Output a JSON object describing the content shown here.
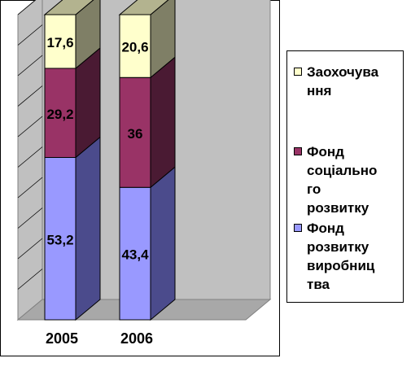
{
  "chart_data": {
    "type": "bar",
    "stacked": true,
    "three_d": true,
    "categories": [
      "2005",
      "2006"
    ],
    "series": [
      {
        "name_lines": [
          "Фонд",
          "розвитку",
          "виробниц",
          "тва"
        ],
        "values": [
          53.2,
          43.4
        ],
        "labels": [
          "53,2",
          "43,4"
        ],
        "color": "#9999ff",
        "side_color": "#4b4b8c",
        "top_color": "#8f8fe6"
      },
      {
        "name_lines": [
          "Фонд",
          "соціально",
          "го",
          "розвитку"
        ],
        "values": [
          29.2,
          36
        ],
        "labels": [
          "29,2",
          "36"
        ],
        "color": "#993366",
        "side_color": "#4a1a33",
        "top_color": "#7a2850"
      },
      {
        "name_lines": [
          "Заохочува",
          "ння"
        ],
        "values": [
          17.6,
          20.6
        ],
        "labels": [
          "17,6",
          "20,6"
        ],
        "color": "#ffffcc",
        "side_color": "#7f7f66",
        "top_color": "#b3b38f"
      }
    ],
    "ylim": [
      0,
      100
    ],
    "grid": true,
    "legend_position": "right",
    "colors": {
      "wall": "#c0c0c0",
      "floor": "#a8a8a8",
      "gridline": "#000000"
    }
  }
}
